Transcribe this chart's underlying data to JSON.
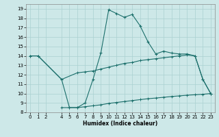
{
  "xlabel": "Humidex (Indice chaleur)",
  "xlim": [
    -0.5,
    23.5
  ],
  "ylim": [
    8,
    19.5
  ],
  "xticks": [
    0,
    1,
    2,
    4,
    5,
    6,
    7,
    8,
    9,
    10,
    11,
    12,
    13,
    14,
    15,
    16,
    17,
    18,
    19,
    20,
    21,
    22,
    23
  ],
  "yticks": [
    8,
    9,
    10,
    11,
    12,
    13,
    14,
    15,
    16,
    17,
    18,
    19
  ],
  "bg_color": "#cde8e8",
  "line_color": "#1a6e6a",
  "grid_color": "#aad0d0",
  "line1_x": [
    0,
    1,
    4,
    5,
    6,
    7,
    8,
    9,
    10,
    11,
    12,
    13,
    14,
    15,
    16,
    17,
    18,
    19,
    20,
    21,
    22,
    23
  ],
  "line1_y": [
    14,
    14,
    11.5,
    8.5,
    8.5,
    9.0,
    11.5,
    14.3,
    18.9,
    18.5,
    18.1,
    18.4,
    17.2,
    15.5,
    14.2,
    14.5,
    14.3,
    14.2,
    14.2,
    14.0,
    11.5,
    10.0
  ],
  "line2_x": [
    0,
    1,
    4,
    6,
    7,
    8,
    9,
    10,
    11,
    12,
    13,
    14,
    15,
    16,
    17,
    18,
    19,
    20,
    21,
    22,
    23
  ],
  "line2_y": [
    14,
    14,
    11.5,
    12.2,
    12.3,
    12.4,
    12.6,
    12.8,
    13.0,
    13.2,
    13.3,
    13.5,
    13.6,
    13.7,
    13.8,
    13.9,
    14.0,
    14.1,
    14.0,
    11.5,
    10.0
  ],
  "line3_x": [
    4,
    5,
    6,
    7,
    8,
    9,
    10,
    11,
    12,
    13,
    14,
    15,
    16,
    17,
    18,
    19,
    20,
    21,
    22,
    23
  ],
  "line3_y": [
    8.5,
    8.5,
    8.5,
    8.6,
    8.7,
    8.8,
    8.95,
    9.05,
    9.15,
    9.25,
    9.35,
    9.45,
    9.52,
    9.6,
    9.68,
    9.75,
    9.82,
    9.87,
    9.92,
    10.0
  ]
}
